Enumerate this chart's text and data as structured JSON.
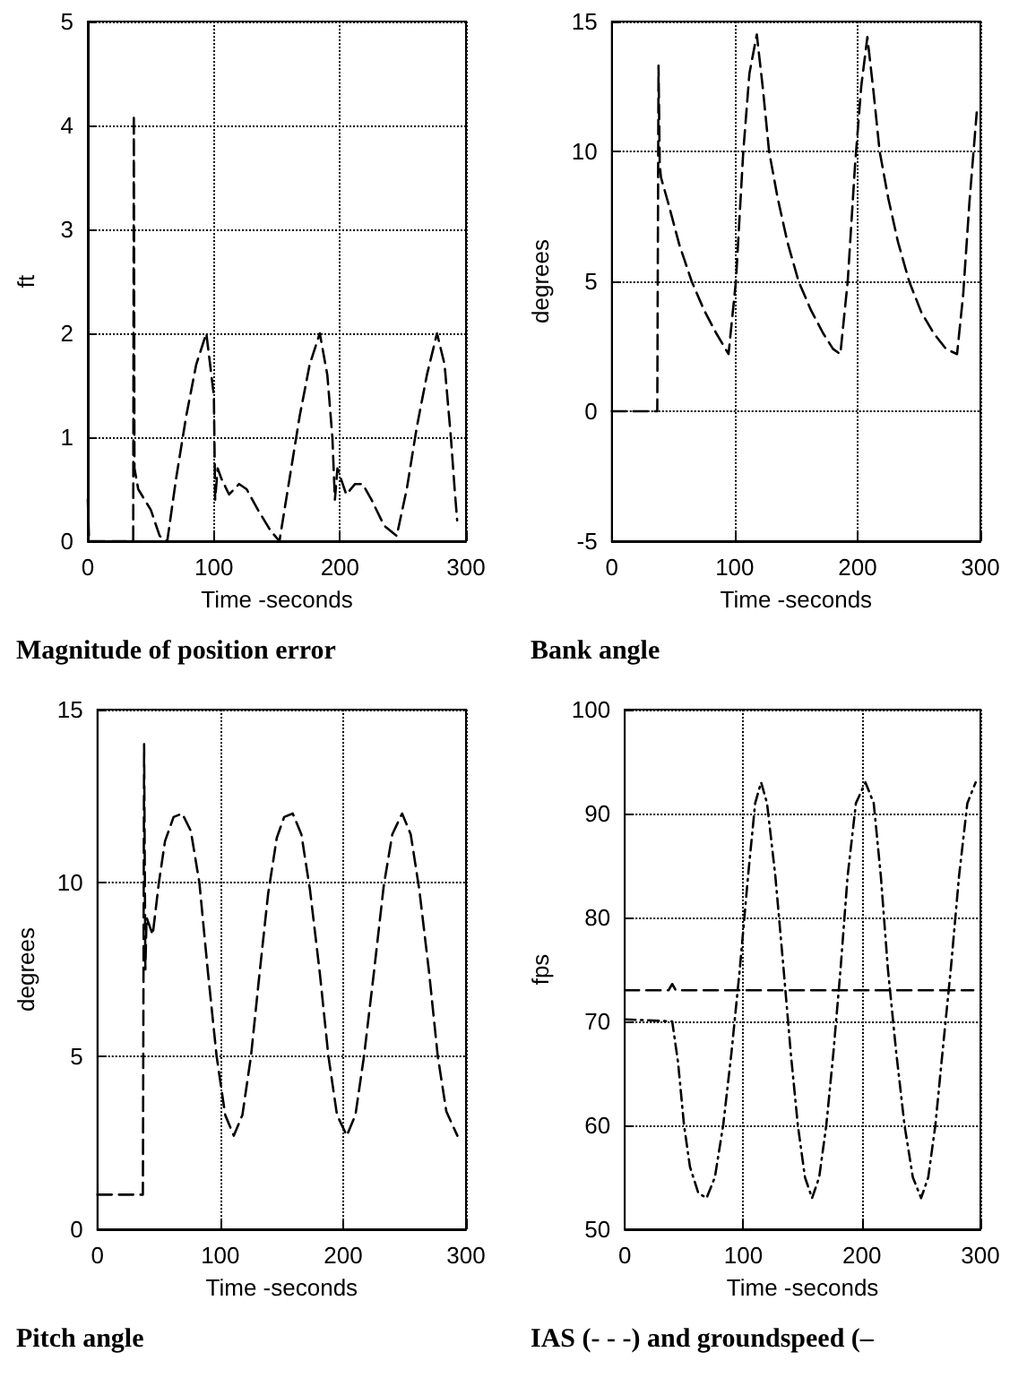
{
  "chart_data": [
    {
      "type": "line",
      "title": "Magnitude of position error",
      "xlabel": "Time -seconds",
      "ylabel": "ft",
      "xlim": [
        0,
        300
      ],
      "xticks": [
        0,
        100,
        200,
        300
      ],
      "ylim": [
        0,
        5
      ],
      "yticks": [
        0,
        1,
        2,
        3,
        4,
        5
      ],
      "grid": true,
      "line_style": "dashed",
      "series": [
        {
          "color": "#000000",
          "x": [
            0,
            1,
            36,
            36.5,
            37,
            40,
            45,
            50,
            57,
            63,
            70,
            78,
            86,
            94,
            98,
            100,
            101,
            103,
            106,
            112,
            120,
            126,
            135,
            145,
            152,
            160,
            168,
            176,
            184,
            190,
            194,
            196,
            198,
            205,
            212,
            218,
            225,
            235,
            245,
            253,
            261,
            269,
            277,
            283,
            288,
            291,
            293
          ],
          "values": [
            0.4,
            0,
            0,
            4.1,
            0.7,
            0.5,
            0.4,
            0.3,
            0.05,
            0,
            0.6,
            1.2,
            1.7,
            2,
            1.6,
            1.4,
            0.4,
            0.7,
            0.6,
            0.45,
            0.55,
            0.5,
            0.3,
            0.1,
            0,
            0.6,
            1.2,
            1.7,
            2,
            1.6,
            1,
            0.4,
            0.7,
            0.45,
            0.55,
            0.55,
            0.4,
            0.15,
            0.05,
            0.5,
            1.1,
            1.6,
            2,
            1.7,
            1,
            0.5,
            0.2
          ]
        }
      ]
    },
    {
      "type": "line",
      "title": "Bank angle",
      "xlabel": "Time -seconds",
      "ylabel": "degrees",
      "xlim": [
        0,
        300
      ],
      "xticks": [
        0,
        100,
        200,
        300
      ],
      "ylim": [
        -5,
        15
      ],
      "yticks": [
        -5,
        0,
        5,
        10,
        15
      ],
      "grid": true,
      "line_style": "dashed",
      "series": [
        {
          "color": "#000000",
          "x": [
            0,
            37,
            38,
            39,
            40,
            46,
            55,
            65,
            75,
            85,
            95,
            101,
            107,
            112,
            118,
            123,
            128,
            135,
            143,
            152,
            162,
            172,
            180,
            186,
            192,
            198,
            203,
            208,
            213,
            218,
            225,
            233,
            242,
            252,
            262,
            272,
            281,
            286,
            291,
            297
          ],
          "values": [
            0,
            0,
            13.3,
            9.5,
            9,
            8,
            6.4,
            5,
            3.9,
            3,
            2.2,
            5,
            10,
            13,
            14.5,
            12.4,
            10,
            8.2,
            6.5,
            5,
            3.9,
            3,
            2.4,
            2.2,
            5,
            9.5,
            12.5,
            14.4,
            12.3,
            10,
            8.2,
            6.5,
            5,
            3.8,
            3,
            2.4,
            2.2,
            4.5,
            8,
            11.5
          ]
        }
      ]
    },
    {
      "type": "line",
      "title": "Pitch angle",
      "xlabel": "Time -seconds",
      "ylabel": "degrees",
      "xlim": [
        0,
        300
      ],
      "xticks": [
        0,
        100,
        200,
        300
      ],
      "ylim": [
        0,
        15
      ],
      "yticks": [
        0,
        5,
        10,
        15
      ],
      "grid": true,
      "line_style": "dashed",
      "series": [
        {
          "color": "#000000",
          "x": [
            0,
            37,
            38,
            39,
            40,
            45,
            50,
            55,
            62,
            69,
            76,
            83,
            90,
            97,
            104,
            111,
            118,
            125,
            132,
            139,
            146,
            152,
            159,
            166,
            173,
            181,
            188,
            195,
            203,
            210,
            217,
            225,
            233,
            240,
            248,
            255,
            262,
            270,
            277,
            284,
            293
          ],
          "values": [
            1,
            1,
            14,
            7.5,
            9,
            8.5,
            10,
            11.2,
            11.9,
            12,
            11.5,
            10,
            7.4,
            5,
            3.3,
            2.7,
            3.3,
            5,
            7.4,
            9.7,
            11.3,
            11.9,
            12,
            11.4,
            9.8,
            7.4,
            5,
            3.3,
            2.7,
            3.3,
            5,
            7.4,
            9.9,
            11.4,
            12,
            11.4,
            9.8,
            7.4,
            5,
            3.4,
            2.7
          ]
        }
      ]
    },
    {
      "type": "line",
      "title": "IAS (- - -) and groundspeed (–",
      "xlabel": "Time -seconds",
      "ylabel": "fps",
      "xlim": [
        0,
        300
      ],
      "xticks": [
        0,
        100,
        200,
        300
      ],
      "ylim": [
        50,
        100
      ],
      "yticks": [
        50,
        60,
        70,
        80,
        90,
        100
      ],
      "grid": true,
      "series": [
        {
          "color": "#000000",
          "line_style": "dashed",
          "x": [
            0,
            37,
            40,
            43,
            294
          ],
          "values": [
            73,
            73,
            73.6,
            73,
            73
          ]
        },
        {
          "color": "#000000",
          "line_style": "dotted",
          "x": [
            0,
            40,
            45,
            50,
            55,
            62,
            69,
            76,
            83,
            90,
            97,
            104,
            110,
            115,
            120,
            127,
            134,
            140,
            146,
            152,
            158,
            164,
            170,
            176,
            182,
            188,
            195,
            203,
            210,
            216,
            222,
            229,
            236,
            243,
            250,
            256,
            262,
            268,
            275,
            282,
            289,
            296
          ],
          "values": [
            70.2,
            70,
            66,
            60,
            56,
            53.5,
            53,
            55,
            60,
            67,
            75,
            84,
            91,
            93,
            91,
            84,
            75,
            67,
            60,
            55,
            53,
            55,
            60,
            67,
            75,
            84,
            91,
            93,
            91,
            84,
            75,
            67,
            60,
            55,
            53,
            55,
            60,
            67,
            75,
            84,
            91,
            93
          ]
        }
      ]
    }
  ]
}
